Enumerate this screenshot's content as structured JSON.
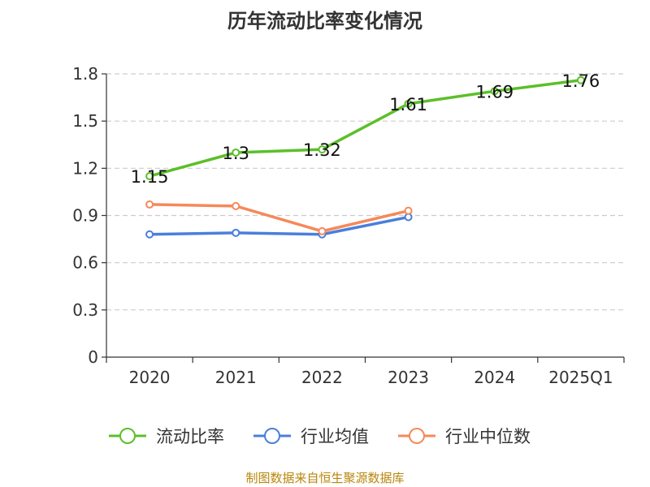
{
  "chart_data": {
    "type": "line",
    "title": "历年流动比率变化情况",
    "categories": [
      "2020",
      "2021",
      "2022",
      "2023",
      "2024",
      "2025Q1"
    ],
    "y_ticks": [
      "0",
      "0.3",
      "0.6",
      "0.9",
      "1.2",
      "1.5",
      "1.8"
    ],
    "ylim": [
      0,
      1.8
    ],
    "grid": true,
    "legend_position": "bottom",
    "series": [
      {
        "name": "流动比率",
        "color": "#5cbf2a",
        "values": [
          1.15,
          1.3,
          1.32,
          1.61,
          1.69,
          1.76
        ],
        "labels": [
          "1.15",
          "1.3",
          "1.32",
          "1.61",
          "1.69",
          "1.76"
        ]
      },
      {
        "name": "行业均值",
        "color": "#4a7fdc",
        "values": [
          0.78,
          0.79,
          0.78,
          0.89,
          null,
          null
        ]
      },
      {
        "name": "行业中位数",
        "color": "#f5895a",
        "values": [
          0.97,
          0.96,
          0.8,
          0.93,
          null,
          null
        ]
      }
    ],
    "source": "制图数据来自恒生聚源数据库"
  }
}
